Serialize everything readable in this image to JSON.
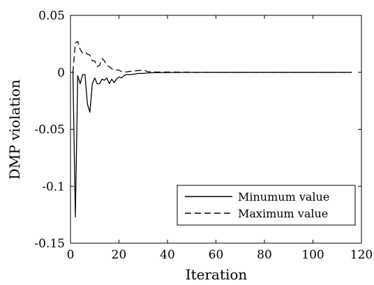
{
  "chart_data": {
    "type": "line",
    "xlabel": "Iteration",
    "ylabel": "DMP violation",
    "xlim": [
      0,
      120
    ],
    "ylim": [
      -0.15,
      0.05
    ],
    "xticks": [
      0,
      20,
      40,
      60,
      80,
      100,
      120
    ],
    "yticks": [
      -0.15,
      -0.1,
      -0.05,
      0,
      0.05
    ],
    "xtick_labels": [
      "0",
      "20",
      "40",
      "60",
      "80",
      "100",
      "120"
    ],
    "ytick_labels": [
      "-0.15",
      "-0.1",
      "-0.05",
      "0",
      "0.05"
    ],
    "grid": false,
    "legend_position": "bottom-right",
    "series": [
      {
        "name": "Minumum value",
        "line_style": "solid",
        "x": [
          1,
          2,
          3,
          4,
          5,
          6,
          7,
          8,
          9,
          10,
          11,
          12,
          13,
          14,
          15,
          16,
          17,
          18,
          19,
          20,
          21,
          22,
          23,
          25,
          28,
          30,
          32,
          35,
          40,
          50,
          60,
          70,
          80,
          90,
          100,
          110,
          116
        ],
        "y": [
          0,
          -0.127,
          -0.003,
          -0.01,
          -0.002,
          -0.002,
          -0.028,
          -0.035,
          -0.01,
          -0.005,
          -0.01,
          -0.01,
          -0.006,
          -0.007,
          -0.005,
          -0.01,
          -0.006,
          -0.009,
          -0.006,
          -0.004,
          -0.005,
          -0.003,
          -0.002,
          -0.002,
          -0.001,
          -0.001,
          -0.0005,
          -0.0003,
          -0.0002,
          -0.0001,
          0,
          0,
          0,
          0,
          0,
          0,
          0
        ]
      },
      {
        "name": "Maximum value",
        "line_style": "dashed",
        "x": [
          1,
          2,
          3,
          4,
          5,
          6,
          7,
          8,
          9,
          10,
          11,
          12,
          13,
          14,
          15,
          16,
          17,
          18,
          19,
          20,
          21,
          22,
          23,
          25,
          28,
          30,
          32,
          35,
          40,
          50,
          60,
          70,
          80,
          90,
          100,
          110,
          116
        ],
        "y": [
          0,
          0.026,
          0.027,
          0.02,
          0.017,
          0.018,
          0.016,
          0.015,
          0.01,
          0.01,
          0.005,
          0.006,
          0.012,
          0.01,
          0.006,
          0.005,
          0.003,
          0.003,
          0.002,
          0.002,
          0.0005,
          0.0005,
          0.0003,
          0.001,
          0.0015,
          0.002,
          0.0005,
          0.0003,
          0.0002,
          0.0001,
          0,
          0,
          0,
          0,
          0,
          0,
          0
        ]
      }
    ]
  }
}
